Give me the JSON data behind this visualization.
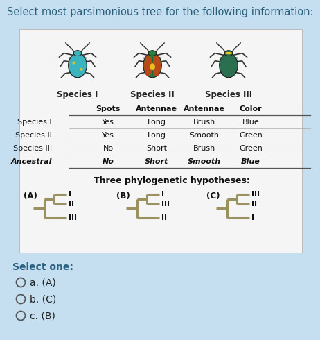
{
  "bg_color": "#c5dff0",
  "card_color": "#f5f5f5",
  "title": "Select most parsimonious tree for the following information:",
  "title_color": "#2a5f7a",
  "title_fontsize": 10.5,
  "table_headers": [
    "Spots",
    "Antennae",
    "Antennae",
    "Color"
  ],
  "table_rows": [
    [
      "Species I",
      "Yes",
      "Long",
      "Brush",
      "Blue"
    ],
    [
      "Species II",
      "Yes",
      "Long",
      "Smooth",
      "Green"
    ],
    [
      "Species III",
      "No",
      "Short",
      "Brush",
      "Green"
    ],
    [
      "Ancestral",
      "No",
      "Short",
      "Smooth",
      "Blue"
    ]
  ],
  "row_italic_bold": [
    false,
    false,
    false,
    true
  ],
  "hypotheses_title": "Three phylogenetic hypotheses:",
  "tree_color": "#9b9060",
  "tree_A": [
    "I",
    "II",
    "III"
  ],
  "tree_B": [
    "I",
    "III",
    "II"
  ],
  "tree_C": [
    "III",
    "II",
    "I"
  ],
  "select_text": "Select one:",
  "options": [
    "a. (A)",
    "b. (C)",
    "c. (B)"
  ],
  "select_color": "#2a6080",
  "option_color": "#222222",
  "beetle1_body": "#3ab5c0",
  "beetle2_body": "#2a8040",
  "beetle3_body": "#2a7050",
  "beetle2_wing": "#d04010",
  "spot_color": "#e8c020",
  "leg_color": "#333333"
}
